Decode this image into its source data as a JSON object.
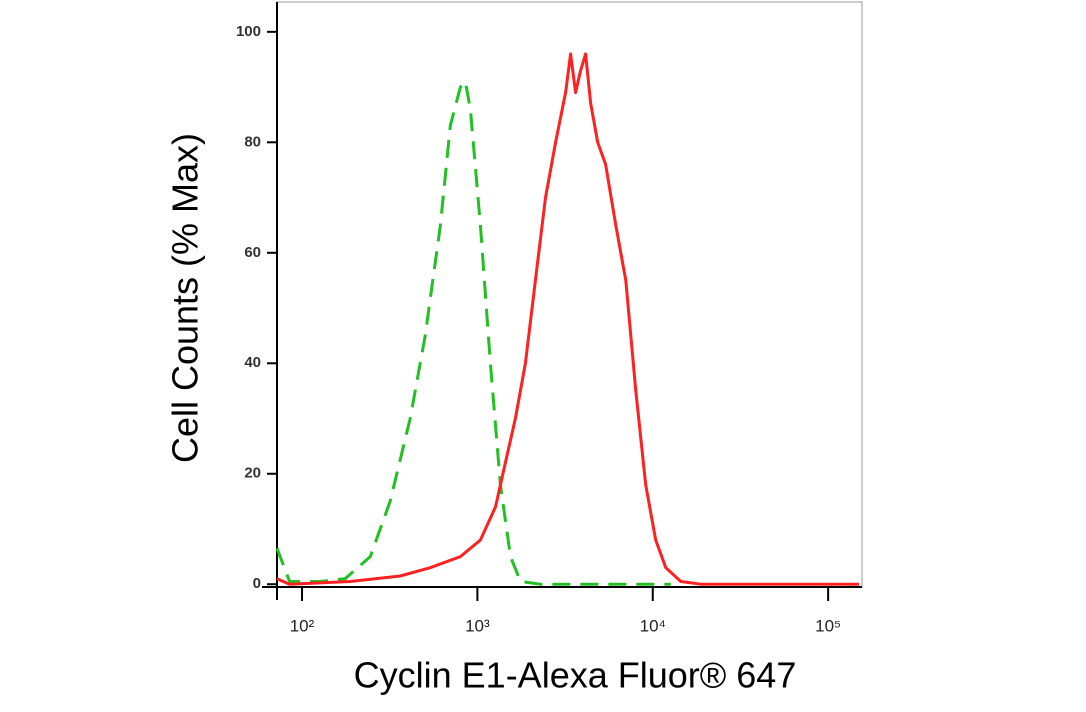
{
  "chart_data": {
    "type": "line",
    "x_label": "Cyclin E1-Alexa Fluor® 647",
    "y_label": "Cell Counts (% Max)",
    "xscale": "log",
    "xlim": [
      72,
      156000
    ],
    "ylim": [
      -0.5,
      105.4
    ],
    "xticks": [
      {
        "value": 100,
        "label": "10²"
      },
      {
        "value": 1000,
        "label": "10³"
      },
      {
        "value": 10000,
        "label": "10⁴"
      },
      {
        "value": 100000,
        "label": "10⁵"
      }
    ],
    "yticks": [
      0,
      20,
      40,
      60,
      80,
      100
    ],
    "series": [
      {
        "color": "#22c022",
        "line_style": "dashed",
        "x": [
          72,
          85,
          127,
          176,
          245,
          318,
          414,
          504,
          615,
          701,
          800,
          853,
          912,
          1040,
          1186,
          1352,
          1544,
          1762,
          2291,
          12680
        ],
        "values": [
          6.5,
          0.5,
          0.5,
          1,
          5,
          15,
          30,
          45,
          65,
          83,
          90,
          91,
          86,
          65,
          40,
          18,
          5,
          0.5,
          0,
          0
        ]
      },
      {
        "color": "#ff2020",
        "line_style": "solid",
        "x": [
          72,
          85,
          188,
          363,
          539,
          800,
          1040,
          1268,
          1445,
          1648,
          1879,
          2143,
          2446,
          2792,
          3185,
          3400,
          3631,
          3876,
          4141,
          4426,
          4853,
          5387,
          6152,
          7015,
          8000,
          9120,
          10400,
          11860,
          14450,
          18790,
          150000
        ],
        "values": [
          1,
          0,
          0.5,
          1.5,
          3,
          5,
          8,
          14,
          22,
          30,
          40,
          55,
          70,
          80,
          89,
          96,
          89,
          93,
          96,
          87,
          80,
          76,
          65,
          55,
          35,
          18,
          8,
          3,
          0.5,
          0,
          0
        ]
      }
    ]
  }
}
